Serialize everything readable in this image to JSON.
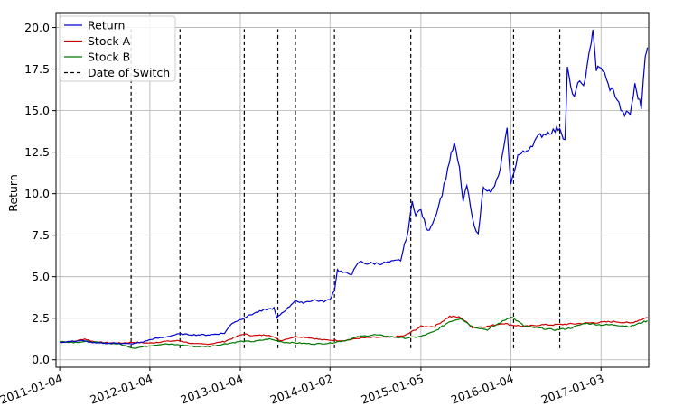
{
  "chart_data": {
    "type": "line",
    "title": "",
    "xlabel": "",
    "ylabel": "Return",
    "xlim": [
      "2010-12-20",
      "2017-07-15"
    ],
    "ylim": [
      -0.45,
      20.9
    ],
    "grid": true,
    "legend_position": "top-left",
    "x_ticks": [
      "2011-01-04",
      "2012-01-04",
      "2013-01-04",
      "2014-01-02",
      "2015-01-05",
      "2016-01-04",
      "2017-01-03"
    ],
    "y_ticks": [
      "0.0",
      "2.5",
      "5.0",
      "7.5",
      "10.0",
      "12.5",
      "15.0",
      "17.5",
      "20.0"
    ],
    "series": [
      {
        "name": "Return",
        "color": "#0000cc",
        "style": "solid",
        "points": [
          [
            "2011-01-04",
            1.05
          ],
          [
            "2011-04-01",
            1.15
          ],
          [
            "2011-06-01",
            1.0
          ],
          [
            "2011-09-01",
            1.0
          ],
          [
            "2011-10-20",
            0.95
          ],
          [
            "2011-12-01",
            1.05
          ],
          [
            "2012-01-15",
            1.25
          ],
          [
            "2012-03-01",
            1.35
          ],
          [
            "2012-05-01",
            1.55
          ],
          [
            "2012-07-01",
            1.5
          ],
          [
            "2012-09-01",
            1.5
          ],
          [
            "2012-11-01",
            1.6
          ],
          [
            "2012-12-01",
            2.2
          ],
          [
            "2013-01-15",
            2.5
          ],
          [
            "2013-03-01",
            2.8
          ],
          [
            "2013-04-15",
            3.0
          ],
          [
            "2013-05-20",
            3.1
          ],
          [
            "2013-06-01",
            2.5
          ],
          [
            "2013-06-20",
            2.8
          ],
          [
            "2013-07-15",
            3.1
          ],
          [
            "2013-08-15",
            3.6
          ],
          [
            "2013-09-01",
            3.4
          ],
          [
            "2013-10-01",
            3.5
          ],
          [
            "2013-11-01",
            3.6
          ],
          [
            "2013-12-01",
            3.5
          ],
          [
            "2014-01-01",
            3.6
          ],
          [
            "2014-01-20",
            4.2
          ],
          [
            "2014-02-01",
            5.4
          ],
          [
            "2014-03-01",
            5.2
          ],
          [
            "2014-04-01",
            5.2
          ],
          [
            "2014-05-01",
            5.9
          ],
          [
            "2014-06-01",
            5.8
          ],
          [
            "2014-08-01",
            5.8
          ],
          [
            "2014-09-15",
            5.9
          ],
          [
            "2014-10-15",
            6.0
          ],
          [
            "2014-11-15",
            7.8
          ],
          [
            "2014-12-01",
            9.5
          ],
          [
            "2014-12-15",
            8.8
          ],
          [
            "2015-01-05",
            9.0
          ],
          [
            "2015-02-01",
            7.7
          ],
          [
            "2015-03-01",
            8.5
          ],
          [
            "2015-04-01",
            10.0
          ],
          [
            "2015-05-01",
            12.0
          ],
          [
            "2015-05-20",
            13.0
          ],
          [
            "2015-06-10",
            11.5
          ],
          [
            "2015-06-25",
            9.5
          ],
          [
            "2015-07-10",
            10.5
          ],
          [
            "2015-08-01",
            8.5
          ],
          [
            "2015-08-25",
            7.5
          ],
          [
            "2015-09-15",
            10.5
          ],
          [
            "2015-10-15",
            10.0
          ],
          [
            "2015-11-15",
            11.0
          ],
          [
            "2015-12-20",
            13.8
          ],
          [
            "2016-01-04",
            10.5
          ],
          [
            "2016-02-01",
            12.3
          ],
          [
            "2016-03-01",
            12.5
          ],
          [
            "2016-04-01",
            13.0
          ],
          [
            "2016-05-01",
            13.5
          ],
          [
            "2016-06-01",
            13.7
          ],
          [
            "2016-07-01",
            13.8
          ],
          [
            "2016-07-20",
            14.0
          ],
          [
            "2016-08-10",
            13.2
          ],
          [
            "2016-08-20",
            17.5
          ],
          [
            "2016-09-10",
            15.8
          ],
          [
            "2016-10-01",
            16.5
          ],
          [
            "2016-11-01",
            16.8
          ],
          [
            "2016-12-01",
            20.0
          ],
          [
            "2016-12-15",
            17.5
          ],
          [
            "2017-01-10",
            17.5
          ],
          [
            "2017-02-01",
            16.5
          ],
          [
            "2017-03-01",
            16.0
          ],
          [
            "2017-04-01",
            14.8
          ],
          [
            "2017-05-01",
            14.8
          ],
          [
            "2017-05-20",
            16.5
          ],
          [
            "2017-06-15",
            15.2
          ],
          [
            "2017-07-01",
            18.5
          ],
          [
            "2017-07-10",
            18.8
          ]
        ]
      },
      {
        "name": "Stock A",
        "color": "#cc0000",
        "style": "solid",
        "points": [
          [
            "2011-01-04",
            1.05
          ],
          [
            "2011-03-01",
            1.1
          ],
          [
            "2011-04-15",
            1.25
          ],
          [
            "2011-06-01",
            1.05
          ],
          [
            "2011-09-01",
            1.0
          ],
          [
            "2011-11-01",
            1.05
          ],
          [
            "2012-01-04",
            1.0
          ],
          [
            "2012-03-01",
            1.1
          ],
          [
            "2012-05-01",
            1.15
          ],
          [
            "2012-07-01",
            0.95
          ],
          [
            "2012-09-01",
            0.95
          ],
          [
            "2012-11-01",
            1.1
          ],
          [
            "2013-01-15",
            1.55
          ],
          [
            "2013-03-01",
            1.45
          ],
          [
            "2013-05-01",
            1.5
          ],
          [
            "2013-06-15",
            1.15
          ],
          [
            "2013-08-15",
            1.4
          ],
          [
            "2013-10-01",
            1.35
          ],
          [
            "2013-12-01",
            1.2
          ],
          [
            "2014-03-01",
            1.15
          ],
          [
            "2014-05-01",
            1.3
          ],
          [
            "2014-07-01",
            1.35
          ],
          [
            "2014-09-01",
            1.35
          ],
          [
            "2014-11-01",
            1.45
          ],
          [
            "2015-01-05",
            2.0
          ],
          [
            "2015-03-01",
            2.0
          ],
          [
            "2015-05-01",
            2.6
          ],
          [
            "2015-06-15",
            2.55
          ],
          [
            "2015-08-01",
            1.95
          ],
          [
            "2015-10-01",
            2.0
          ],
          [
            "2015-12-01",
            2.2
          ],
          [
            "2016-01-04",
            2.1
          ],
          [
            "2016-03-01",
            2.0
          ],
          [
            "2016-05-01",
            2.1
          ],
          [
            "2016-07-01",
            2.1
          ],
          [
            "2016-09-01",
            2.15
          ],
          [
            "2016-11-01",
            2.2
          ],
          [
            "2017-01-03",
            2.25
          ],
          [
            "2017-03-01",
            2.3
          ],
          [
            "2017-05-01",
            2.2
          ],
          [
            "2017-07-10",
            2.55
          ]
        ]
      },
      {
        "name": "Stock B",
        "color": "#007700",
        "style": "solid",
        "points": [
          [
            "2011-01-04",
            1.1
          ],
          [
            "2011-03-01",
            1.05
          ],
          [
            "2011-05-01",
            1.1
          ],
          [
            "2011-07-01",
            1.0
          ],
          [
            "2011-09-01",
            0.95
          ],
          [
            "2011-11-01",
            0.7
          ],
          [
            "2012-01-04",
            0.85
          ],
          [
            "2012-03-01",
            0.95
          ],
          [
            "2012-05-01",
            0.9
          ],
          [
            "2012-07-01",
            0.8
          ],
          [
            "2012-09-01",
            0.8
          ],
          [
            "2012-11-01",
            0.95
          ],
          [
            "2013-01-04",
            1.1
          ],
          [
            "2013-03-01",
            1.1
          ],
          [
            "2013-05-01",
            1.25
          ],
          [
            "2013-07-01",
            1.05
          ],
          [
            "2013-09-01",
            1.0
          ],
          [
            "2013-11-01",
            0.95
          ],
          [
            "2014-01-02",
            1.0
          ],
          [
            "2014-03-01",
            1.15
          ],
          [
            "2014-05-01",
            1.4
          ],
          [
            "2014-07-01",
            1.5
          ],
          [
            "2014-09-01",
            1.4
          ],
          [
            "2014-11-01",
            1.3
          ],
          [
            "2015-01-05",
            1.4
          ],
          [
            "2015-03-01",
            1.7
          ],
          [
            "2015-05-01",
            2.3
          ],
          [
            "2015-06-15",
            2.5
          ],
          [
            "2015-08-01",
            2.0
          ],
          [
            "2015-10-01",
            1.8
          ],
          [
            "2015-12-01",
            2.3
          ],
          [
            "2016-01-04",
            2.6
          ],
          [
            "2016-03-01",
            2.0
          ],
          [
            "2016-05-01",
            1.9
          ],
          [
            "2016-07-01",
            1.8
          ],
          [
            "2016-09-01",
            1.9
          ],
          [
            "2016-11-01",
            2.2
          ],
          [
            "2017-01-03",
            2.1
          ],
          [
            "2017-03-01",
            2.1
          ],
          [
            "2017-05-01",
            2.0
          ],
          [
            "2017-07-10",
            2.35
          ]
        ]
      }
    ],
    "switch_dates": {
      "name": "Date of Switch",
      "color": "#000000",
      "style": "dashed",
      "ymin": 0.7,
      "ymax": 19.9,
      "dates": [
        "2011-10-20",
        "2012-05-05",
        "2013-01-20",
        "2013-06-05",
        "2013-08-15",
        "2014-01-20",
        "2014-11-25",
        "2016-01-15",
        "2016-07-20"
      ]
    }
  }
}
